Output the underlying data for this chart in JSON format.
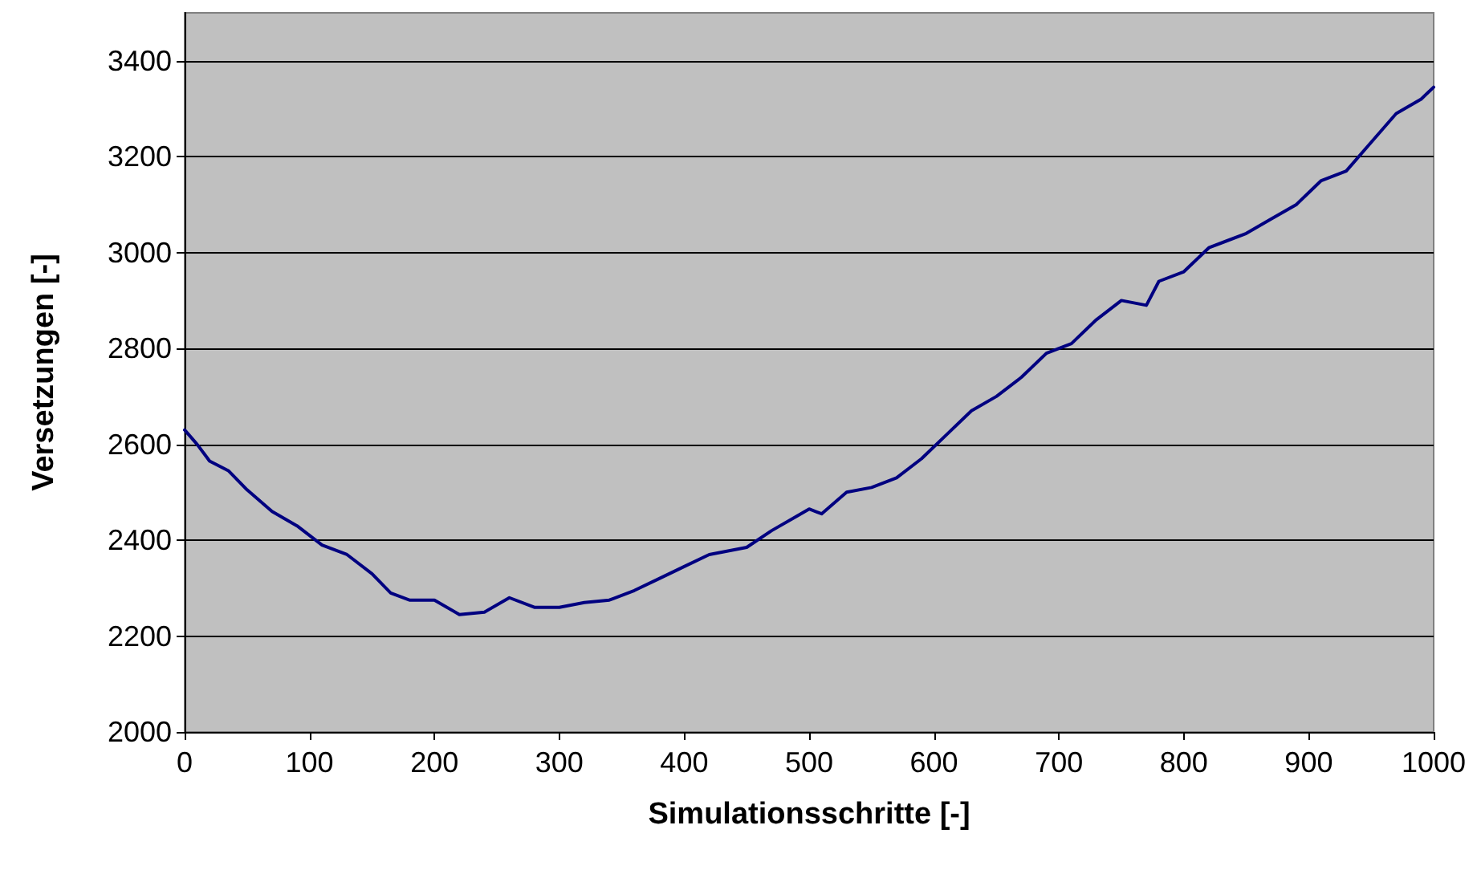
{
  "chart_data": {
    "type": "line",
    "xlabel": "Simulationsschritte [-]",
    "ylabel": "Versetzungen [-]",
    "x": [
      0,
      10,
      20,
      35,
      50,
      70,
      90,
      110,
      130,
      150,
      165,
      180,
      200,
      220,
      240,
      260,
      280,
      300,
      320,
      340,
      360,
      380,
      400,
      420,
      450,
      470,
      490,
      500,
      510,
      530,
      550,
      570,
      590,
      610,
      630,
      650,
      670,
      690,
      710,
      730,
      750,
      770,
      780,
      800,
      820,
      850,
      870,
      890,
      910,
      930,
      950,
      970,
      980,
      990,
      1000
    ],
    "series": [
      {
        "color": "#000080",
        "values": [
          2630,
          2600,
          2565,
          2545,
          2505,
          2460,
          2430,
          2390,
          2370,
          2330,
          2290,
          2275,
          2275,
          2245,
          2250,
          2280,
          2260,
          2260,
          2270,
          2275,
          2295,
          2320,
          2345,
          2370,
          2385,
          2420,
          2450,
          2465,
          2455,
          2500,
          2510,
          2530,
          2570,
          2620,
          2670,
          2700,
          2740,
          2790,
          2810,
          2860,
          2900,
          2890,
          2940,
          2960,
          3010,
          3040,
          3070,
          3100,
          3150,
          3170,
          3230,
          3290,
          3305,
          3320,
          3345
        ]
      }
    ],
    "xlim": [
      0,
      1000
    ],
    "xticks": [
      0,
      100,
      200,
      300,
      400,
      500,
      600,
      700,
      800,
      900,
      1000
    ],
    "ylim": [
      2000,
      3500
    ],
    "yticks": [
      2000,
      2200,
      2400,
      2600,
      2800,
      3000,
      3200,
      3400
    ],
    "grid": "y",
    "marker": "none",
    "line_style": "solid"
  }
}
